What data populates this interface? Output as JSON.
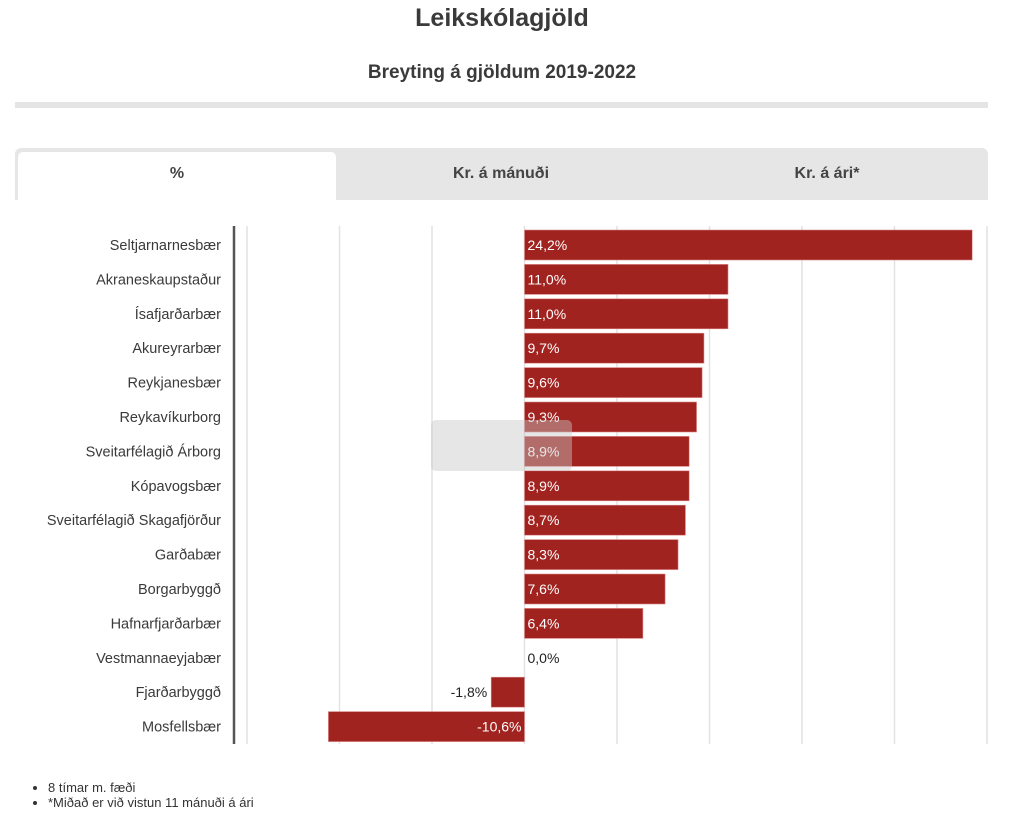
{
  "header": {
    "title": "Leikskólagjöld",
    "subtitle": "Breyting á gjöldum 2019-2022"
  },
  "tabs": [
    {
      "label": "%",
      "active": true
    },
    {
      "label": "Kr. á mánuði",
      "active": false
    },
    {
      "label": "Kr. á ári*",
      "active": false
    }
  ],
  "colors": {
    "bar": "#a02320",
    "gridline": "#e2e2e2",
    "axis": "#555555"
  },
  "chart_data": {
    "type": "bar",
    "orientation": "horizontal",
    "title": "Breyting á gjöldum 2019-2022",
    "xlabel": "",
    "ylabel": "",
    "xlim": [
      -15,
      25
    ],
    "grid": true,
    "gridline_values": [
      -15,
      -10,
      -5,
      0,
      5,
      10,
      15,
      20,
      25
    ],
    "categories": [
      "Seltjarnarnesbær",
      "Akraneskaupstaður",
      "Ísafjarðarbær",
      "Akureyrarbær",
      "Reykjanesbær",
      "Reykavíkurborg",
      "Sveitarfélagið Árborg",
      "Kópavogsbær",
      "Sveitarfélagið Skagafjörður",
      "Garðabær",
      "Borgarbyggð",
      "Hafnarfjarðarbær",
      "Vestmannaeyjabær",
      "Fjarðarbyggð",
      "Mosfellsbær"
    ],
    "values": [
      24.2,
      11.0,
      11.0,
      9.7,
      9.6,
      9.3,
      8.9,
      8.9,
      8.7,
      8.3,
      7.6,
      6.4,
      0.0,
      -1.8,
      -10.6
    ],
    "data_labels": [
      "24,2%",
      "11,0%",
      "11,0%",
      "9,7%",
      "9,6%",
      "9,3%",
      "8,9%",
      "8,9%",
      "8,7%",
      "8,3%",
      "7,6%",
      "6,4%",
      "0,0%",
      "-1,8%",
      "-10,6%"
    ]
  },
  "footnotes": [
    "8 tímar m. fæði",
    "*Miðað er við vistun 11 mánuði á ári"
  ]
}
